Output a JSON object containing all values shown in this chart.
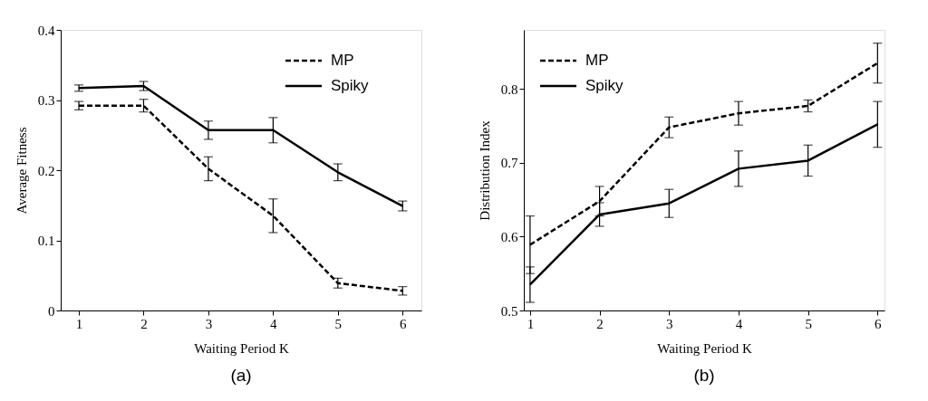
{
  "chart_data": [
    {
      "type": "line",
      "xlabel": "Waiting Period K",
      "ylabel": "Average Fitness",
      "annotations": [
        "(a)"
      ],
      "x": [
        1,
        2,
        3,
        4,
        5,
        6
      ],
      "xlim": [
        0.72,
        6.29
      ],
      "xticks": [
        1,
        2,
        3,
        4,
        5,
        6
      ],
      "ylim": [
        0,
        0.4
      ],
      "yticks": [
        0,
        0.1,
        0.2,
        0.3,
        0.4
      ],
      "grid": false,
      "legend": "top right",
      "marker": "none",
      "series": [
        {
          "name": "MP",
          "color": "#000000",
          "line_style": "dashed",
          "values": [
            0.292,
            0.292,
            0.202,
            0.135,
            0.039,
            0.028
          ],
          "errors": [
            0.006,
            0.009,
            0.017,
            0.024,
            0.007,
            0.006
          ]
        },
        {
          "name": "Spiky",
          "color": "#000000",
          "line_style": "solid",
          "values": [
            0.317,
            0.32,
            0.257,
            0.257,
            0.197,
            0.149
          ],
          "errors": [
            0.0045,
            0.0065,
            0.013,
            0.018,
            0.012,
            0.007
          ]
        }
      ]
    },
    {
      "type": "line",
      "xlabel": "Waiting Period K",
      "ylabel": "Distribution Index",
      "annotations": [
        "(b)"
      ],
      "x": [
        1,
        2,
        3,
        4,
        5,
        6
      ],
      "xlim": [
        0.91,
        6.1
      ],
      "xticks": [
        1,
        2,
        3,
        4,
        5,
        6
      ],
      "ylim": [
        0.5,
        0.88
      ],
      "yticks": [
        0.5,
        0.6,
        0.7,
        0.8
      ],
      "grid": false,
      "legend": "top left",
      "marker": "none",
      "series": [
        {
          "name": "MP",
          "color": "#000000",
          "line_style": "dashed",
          "values": [
            0.589,
            0.648,
            0.748,
            0.767,
            0.777,
            0.835
          ],
          "errors": [
            0.039,
            0.02,
            0.014,
            0.016,
            0.008,
            0.027
          ]
        },
        {
          "name": "Spiky",
          "color": "#000000",
          "line_style": "solid",
          "values": [
            0.535,
            0.63,
            0.645,
            0.692,
            0.703,
            0.752
          ],
          "errors": [
            0.024,
            0.016,
            0.019,
            0.024,
            0.021,
            0.031
          ]
        }
      ]
    }
  ]
}
